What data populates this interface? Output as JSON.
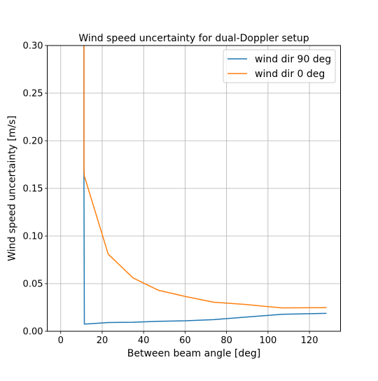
{
  "chart_data": {
    "type": "line",
    "title": "Wind speed uncertainty for dual-Doppler setup",
    "xlabel": "Between beam angle [deg]",
    "ylabel": "Wind speed uncertainty [m/s]",
    "xlim": [
      -6.5,
      135
    ],
    "ylim": [
      0,
      0.3
    ],
    "xticks": [
      0,
      20,
      40,
      60,
      80,
      100,
      120
    ],
    "xtick_labels": [
      "0",
      "20",
      "40",
      "60",
      "80",
      "100",
      "120"
    ],
    "yticks": [
      0,
      0.05,
      0.1,
      0.15,
      0.2,
      0.25,
      0.3
    ],
    "ytick_labels": [
      "0.00",
      "0.05",
      "0.10",
      "0.15",
      "0.20",
      "0.25",
      "0.30"
    ],
    "grid": true,
    "legend_position": "upper-right",
    "series": [
      {
        "name": "wind dir 90 deg",
        "color": "#1f77b4",
        "x": [
          11.2,
          11.2,
          11.4,
          22.9,
          34.9,
          47.2,
          60.2,
          73.8,
          88.8,
          106.7,
          128.2
        ],
        "y": [
          0.3,
          0.163,
          0.0075,
          0.0092,
          0.0095,
          0.0105,
          0.011,
          0.0122,
          0.0148,
          0.0178,
          0.0188
        ]
      },
      {
        "name": "wind dir 0 deg",
        "color": "#ff7f0e",
        "x": [
          11.2,
          11.2,
          11.4,
          22.9,
          34.9,
          47.2,
          60.2,
          73.8,
          88.8,
          106.7,
          128.2
        ],
        "y": [
          0.3,
          0.172,
          0.163,
          0.081,
          0.056,
          0.043,
          0.0365,
          0.0305,
          0.0282,
          0.0245,
          0.0248
        ]
      }
    ]
  }
}
